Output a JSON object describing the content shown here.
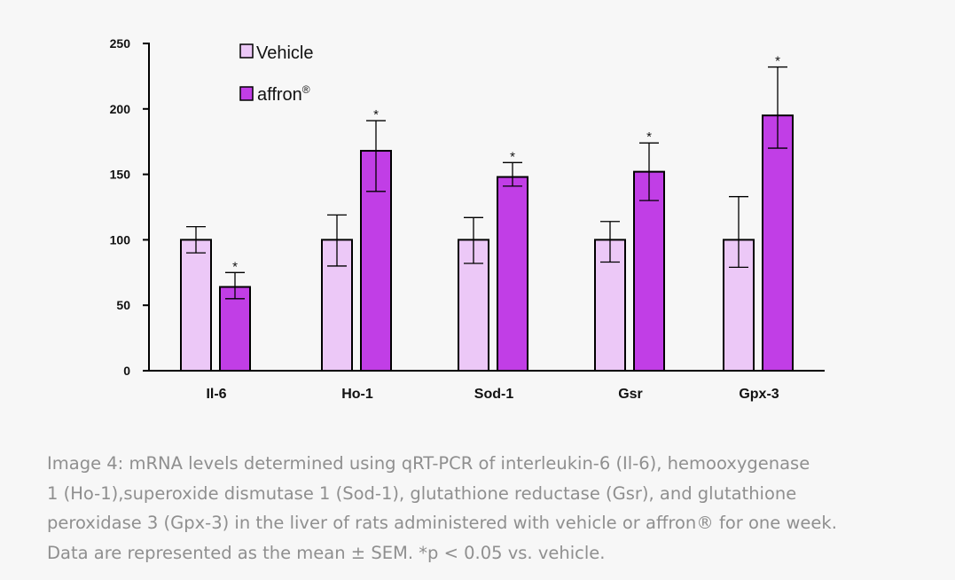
{
  "chart_data": {
    "type": "bar",
    "categories": [
      "Il-6",
      "Ho-1",
      "Sod-1",
      "Gsr",
      "Gpx-3"
    ],
    "series": [
      {
        "name": "Vehicle",
        "color": "#ecc8f7",
        "values": [
          100,
          100,
          100,
          100,
          100
        ],
        "err_low": [
          90,
          80,
          82,
          83,
          79
        ],
        "err_high": [
          110,
          119,
          117,
          114,
          133
        ]
      },
      {
        "name": "affron",
        "name_sup": "®",
        "color": "#c13ee6",
        "values": [
          64,
          168,
          148,
          152,
          195
        ],
        "err_low": [
          55,
          137,
          141,
          130,
          170
        ],
        "err_high": [
          75,
          191,
          159,
          174,
          232
        ],
        "significance": [
          "*",
          "*",
          "*",
          "*",
          "*"
        ]
      }
    ],
    "ylim": [
      0,
      250
    ],
    "yticks": [
      0,
      50,
      100,
      150,
      200,
      250
    ],
    "xlabel": "",
    "ylabel": "",
    "legend_position": "top-left"
  },
  "caption": [
    "Image 4: mRNA levels determined using qRT-PCR of interleukin-6 (Il-6), hemooxygenase",
    "1 (Ho-1),superoxide dismutase 1 (Sod-1), glutathione reductase (Gsr), and glutathione",
    "peroxidase 3 (Gpx-3) in the liver of rats administered with vehicle or affron® for one week.",
    "Data are represented as the mean ± SEM. *p < 0.05 vs. vehicle."
  ]
}
